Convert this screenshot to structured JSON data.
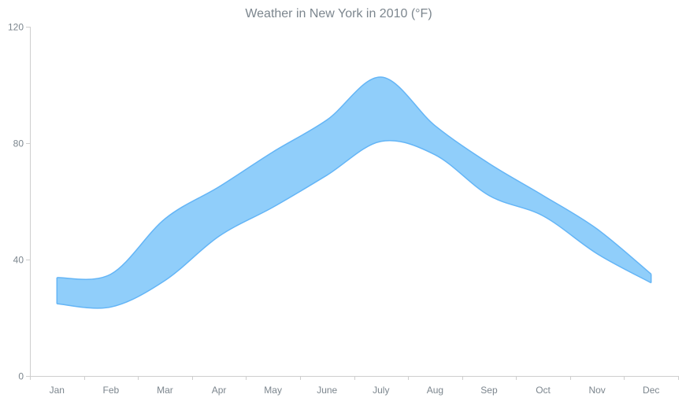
{
  "chart_data": {
    "type": "area",
    "subtype": "range-spline-area",
    "title": "Weather in New York in 2010 (°F)",
    "xlabel": "",
    "ylabel": "",
    "categories": [
      "Jan",
      "Feb",
      "Mar",
      "Apr",
      "May",
      "June",
      "July",
      "Aug",
      "Sep",
      "Oct",
      "Nov",
      "Dec"
    ],
    "ylim": [
      0,
      120
    ],
    "yticks": [
      "0",
      "40",
      "80",
      "120"
    ],
    "grid": false,
    "legend": "none",
    "series": [
      {
        "low": [
          24.8,
          23.7,
          32.8,
          48.0,
          58.0,
          69.0,
          80.6,
          76.0,
          62.0,
          55.0,
          42.0,
          32.0
        ],
        "high": [
          33.8,
          35.0,
          54.0,
          65.0,
          77.0,
          88.0,
          102.7,
          86.0,
          73.0,
          62.0,
          50.5,
          35.0
        ],
        "fill_color": "#90cefa",
        "stroke_color": "#64b5f6"
      }
    ],
    "colors": {
      "axis": "#cecece",
      "text": "#7c868e"
    }
  }
}
